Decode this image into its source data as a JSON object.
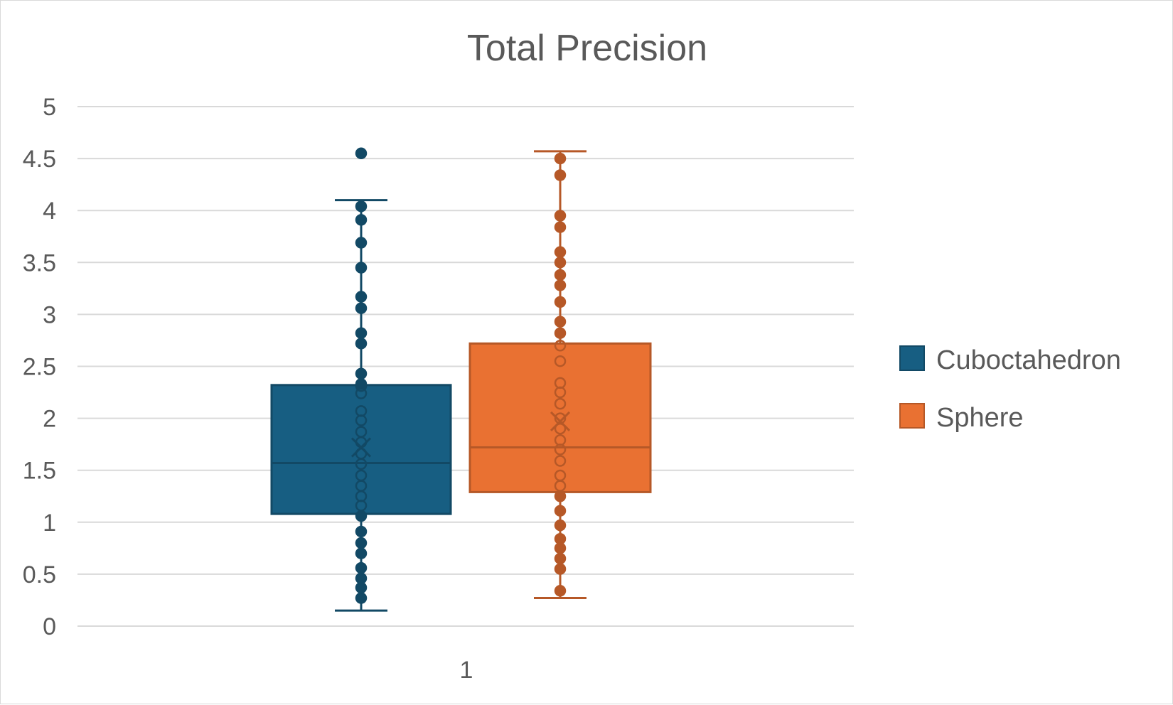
{
  "chart_data": {
    "type": "boxplot",
    "title": "Total Precision",
    "categories": [
      "1"
    ],
    "ylim": [
      0,
      5
    ],
    "yticks": [
      "0",
      "0.5",
      "1",
      "1.5",
      "2",
      "2.5",
      "3",
      "3.5",
      "4",
      "4.5",
      "5"
    ],
    "grid": true,
    "legend_position": "right",
    "series": [
      {
        "name": "Cuboctahedron",
        "color": "#175e82",
        "whisker_low": 0.15,
        "q1": 1.08,
        "median": 1.57,
        "q3": 2.32,
        "whisker_high": 4.1,
        "mean": 1.72,
        "outliers": [
          4.55
        ],
        "points": [
          0.27,
          0.37,
          0.46,
          0.56,
          0.7,
          0.8,
          0.91,
          1.06,
          1.16,
          1.25,
          1.35,
          1.45,
          1.56,
          1.66,
          1.77,
          1.87,
          1.98,
          2.07,
          2.24,
          2.31,
          2.33,
          2.43,
          2.72,
          2.82,
          3.06,
          3.17,
          3.45,
          3.69,
          3.91,
          4.04
        ]
      },
      {
        "name": "Sphere",
        "color": "#e97132",
        "whisker_low": 0.27,
        "q1": 1.29,
        "median": 1.72,
        "q3": 2.72,
        "whisker_high": 4.57,
        "mean": 1.97,
        "outliers": [],
        "points": [
          0.34,
          0.55,
          0.65,
          0.75,
          0.84,
          0.97,
          1.11,
          1.25,
          1.35,
          1.45,
          1.59,
          1.7,
          1.79,
          1.9,
          2.0,
          2.14,
          2.25,
          2.34,
          2.55,
          2.7,
          2.82,
          2.93,
          3.12,
          3.28,
          3.38,
          3.5,
          3.6,
          3.84,
          3.95,
          4.34,
          4.5
        ]
      }
    ]
  }
}
